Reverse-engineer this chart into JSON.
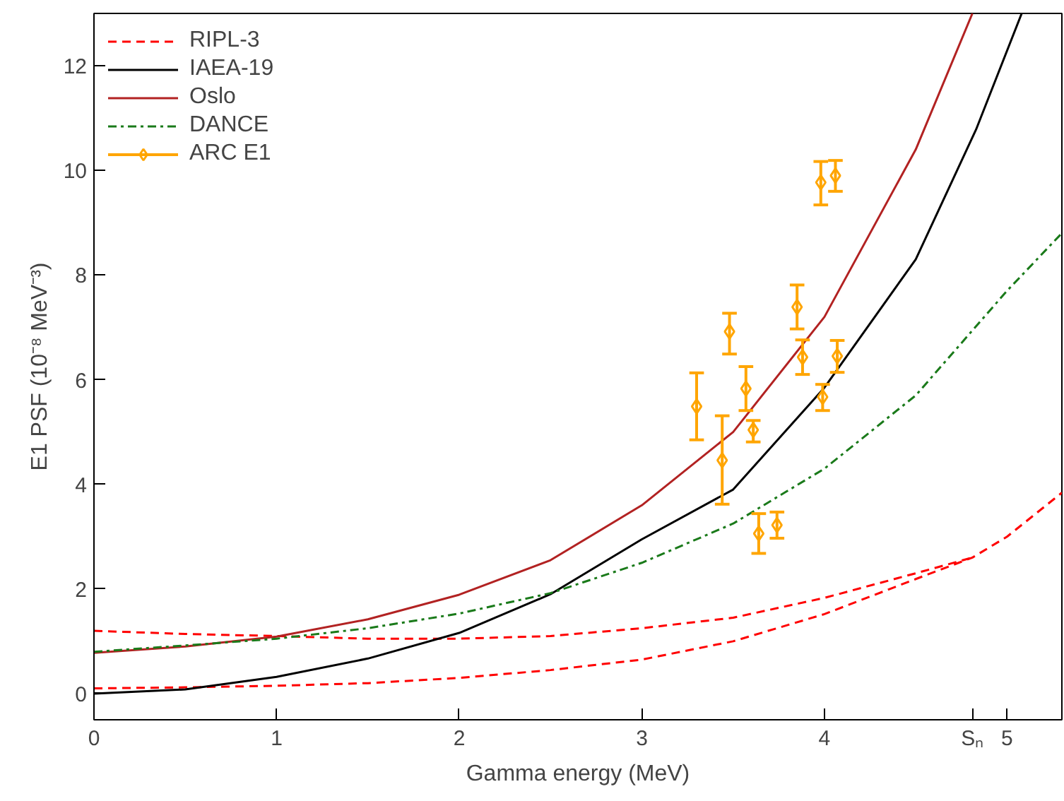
{
  "chart_data": {
    "type": "line",
    "xlabel": "Gamma energy (MeV)",
    "ylabel": "E1 PSF (10⁻⁸ MeV⁻³)",
    "xlim": [
      0,
      5.3
    ],
    "ylim": [
      -0.5,
      13
    ],
    "xticks": [
      0,
      1,
      2,
      3,
      4,
      {
        "value": 4.81,
        "label": "Sₙ"
      },
      5
    ],
    "yticks": [
      0,
      2,
      4,
      6,
      8,
      10,
      12
    ],
    "legend": "top left",
    "grid": false,
    "series": [
      {
        "name": "RIPL-3",
        "color": "#ff0000",
        "line_style": "dashed",
        "marker": "none",
        "x": [
          0,
          0.5,
          1,
          1.5,
          2,
          2.5,
          3,
          3.5,
          4,
          4.5,
          4.81
        ],
        "values": [
          1.2,
          1.14,
          1.1,
          1.05,
          1.05,
          1.1,
          1.25,
          1.45,
          1.83,
          2.3,
          2.6
        ]
      },
      {
        "color": "#ff0000",
        "line_style": "dashed",
        "marker": "none",
        "x": [
          0,
          0.5,
          1,
          1.5,
          2,
          2.5,
          3,
          3.5,
          4,
          4.5,
          4.81,
          5,
          5.3
        ],
        "values": [
          0.1,
          0.12,
          0.15,
          0.2,
          0.3,
          0.45,
          0.65,
          1.0,
          1.52,
          2.19,
          2.6,
          3.0,
          3.84
        ]
      },
      {
        "name": "IAEA-19",
        "color": "#000000",
        "line_style": "solid",
        "marker": "none",
        "x": [
          0,
          0.5,
          1,
          1.5,
          2,
          2.5,
          3,
          3.5,
          4,
          4.5,
          4.83,
          5.08
        ],
        "values": [
          0,
          0.08,
          0.32,
          0.67,
          1.16,
          1.9,
          2.95,
          3.9,
          5.85,
          8.3,
          10.78,
          13
        ]
      },
      {
        "name": "Oslo",
        "color": "#b22222",
        "line_style": "solid",
        "marker": "none",
        "x": [
          0,
          0.5,
          1,
          1.5,
          2,
          2.5,
          3,
          3.5,
          4,
          4.5,
          4.81
        ],
        "values": [
          0.78,
          0.9,
          1.09,
          1.42,
          1.89,
          2.55,
          3.6,
          5.0,
          7.2,
          10.4,
          13
        ]
      },
      {
        "name": "DANCE",
        "color": "#1a7a1a",
        "line_style": "dashdot",
        "marker": "none",
        "x": [
          0,
          0.5,
          1,
          1.5,
          2,
          2.5,
          3,
          3.5,
          4,
          4.5,
          5,
          5.3
        ],
        "values": [
          0.8,
          0.92,
          1.05,
          1.25,
          1.53,
          1.92,
          2.5,
          3.25,
          4.3,
          5.7,
          7.7,
          8.8
        ]
      },
      {
        "name": "ARC E1",
        "type": "scatter",
        "color": "#ffa500",
        "marker": "diamond",
        "x": [
          3.3,
          3.44,
          3.48,
          3.57,
          3.61,
          3.64,
          3.74,
          3.85,
          3.88,
          3.98,
          3.99,
          4.06,
          4.07
        ],
        "values": [
          5.49,
          4.46,
          6.92,
          5.83,
          5.04,
          3.06,
          3.22,
          7.39,
          6.43,
          9.77,
          5.67,
          9.9,
          6.45
        ],
        "errors": [
          [
            4.85,
            6.13
          ],
          [
            3.62,
            5.31
          ],
          [
            6.49,
            7.27
          ],
          [
            5.41,
            6.25
          ],
          [
            4.81,
            5.22
          ],
          [
            2.68,
            3.44
          ],
          [
            2.97,
            3.47
          ],
          [
            6.97,
            7.81
          ],
          [
            6.1,
            6.76
          ],
          [
            9.34,
            10.17
          ],
          [
            5.41,
            5.91
          ],
          [
            9.6,
            10.19
          ],
          [
            6.14,
            6.75
          ]
        ]
      }
    ]
  }
}
